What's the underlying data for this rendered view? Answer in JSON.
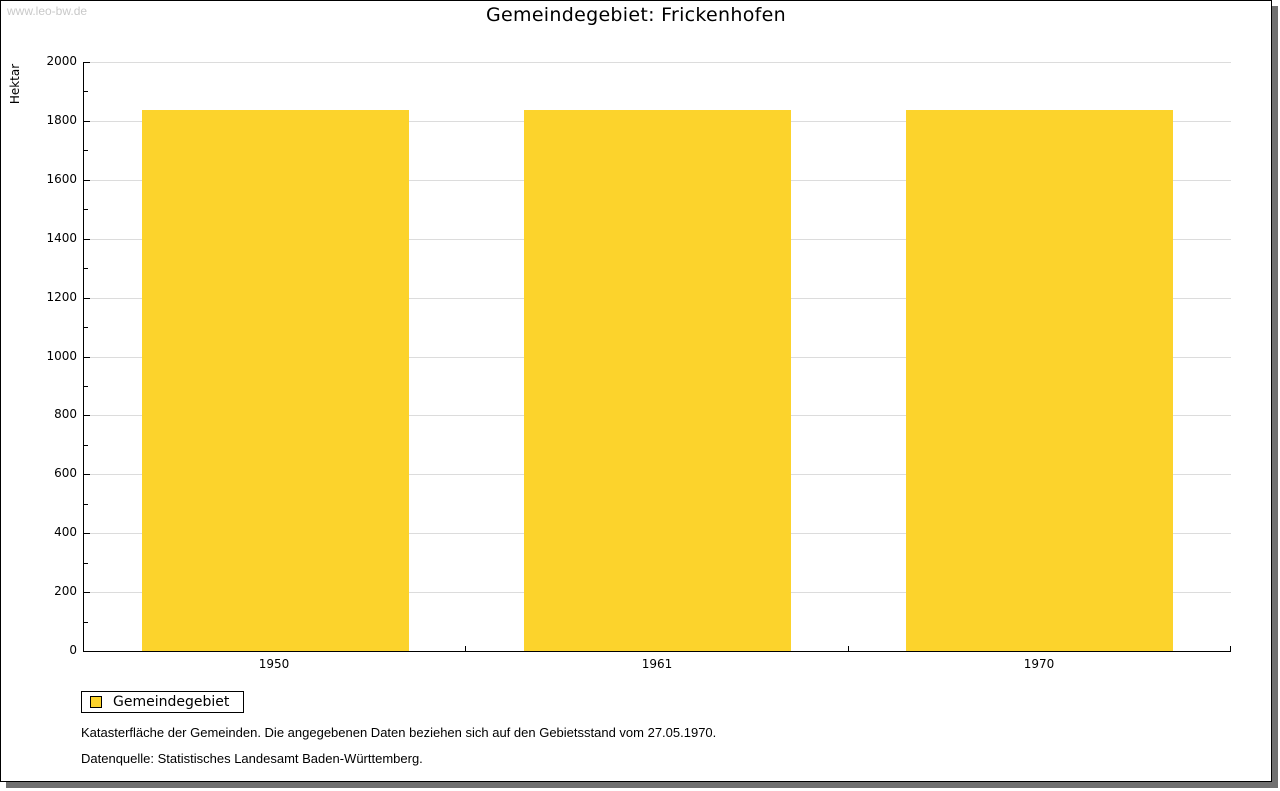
{
  "page": {
    "watermark": "www.leo-bw.de",
    "title": "Gemeindegebiet: Frickenhofen"
  },
  "chart_data": {
    "type": "bar",
    "title": "Gemeindegebiet: Frickenhofen",
    "xlabel": "",
    "ylabel": "Hektar",
    "categories": [
      "1950",
      "1961",
      "1970"
    ],
    "series": [
      {
        "name": "Gemeindegebiet",
        "values": [
          1836,
          1836,
          1836
        ]
      }
    ],
    "ylim": [
      0,
      2000
    ],
    "ytick_step": 200,
    "minor_tick_step": 100,
    "grid": true,
    "legend_position": "bottom-left",
    "colors": {
      "bar": "#fcd32c",
      "grid": "#dcdcdc",
      "axis": "#000000"
    }
  },
  "legend": {
    "items": [
      {
        "label": "Gemeindegebiet",
        "color": "#fcd32c"
      }
    ]
  },
  "notes": {
    "line1": "Katasterfläche der Gemeinden. Die angegebenen Daten beziehen sich auf den Gebietsstand vom 27.05.1970.",
    "line2": "Datenquelle: Statistisches Landesamt Baden-Württemberg."
  }
}
